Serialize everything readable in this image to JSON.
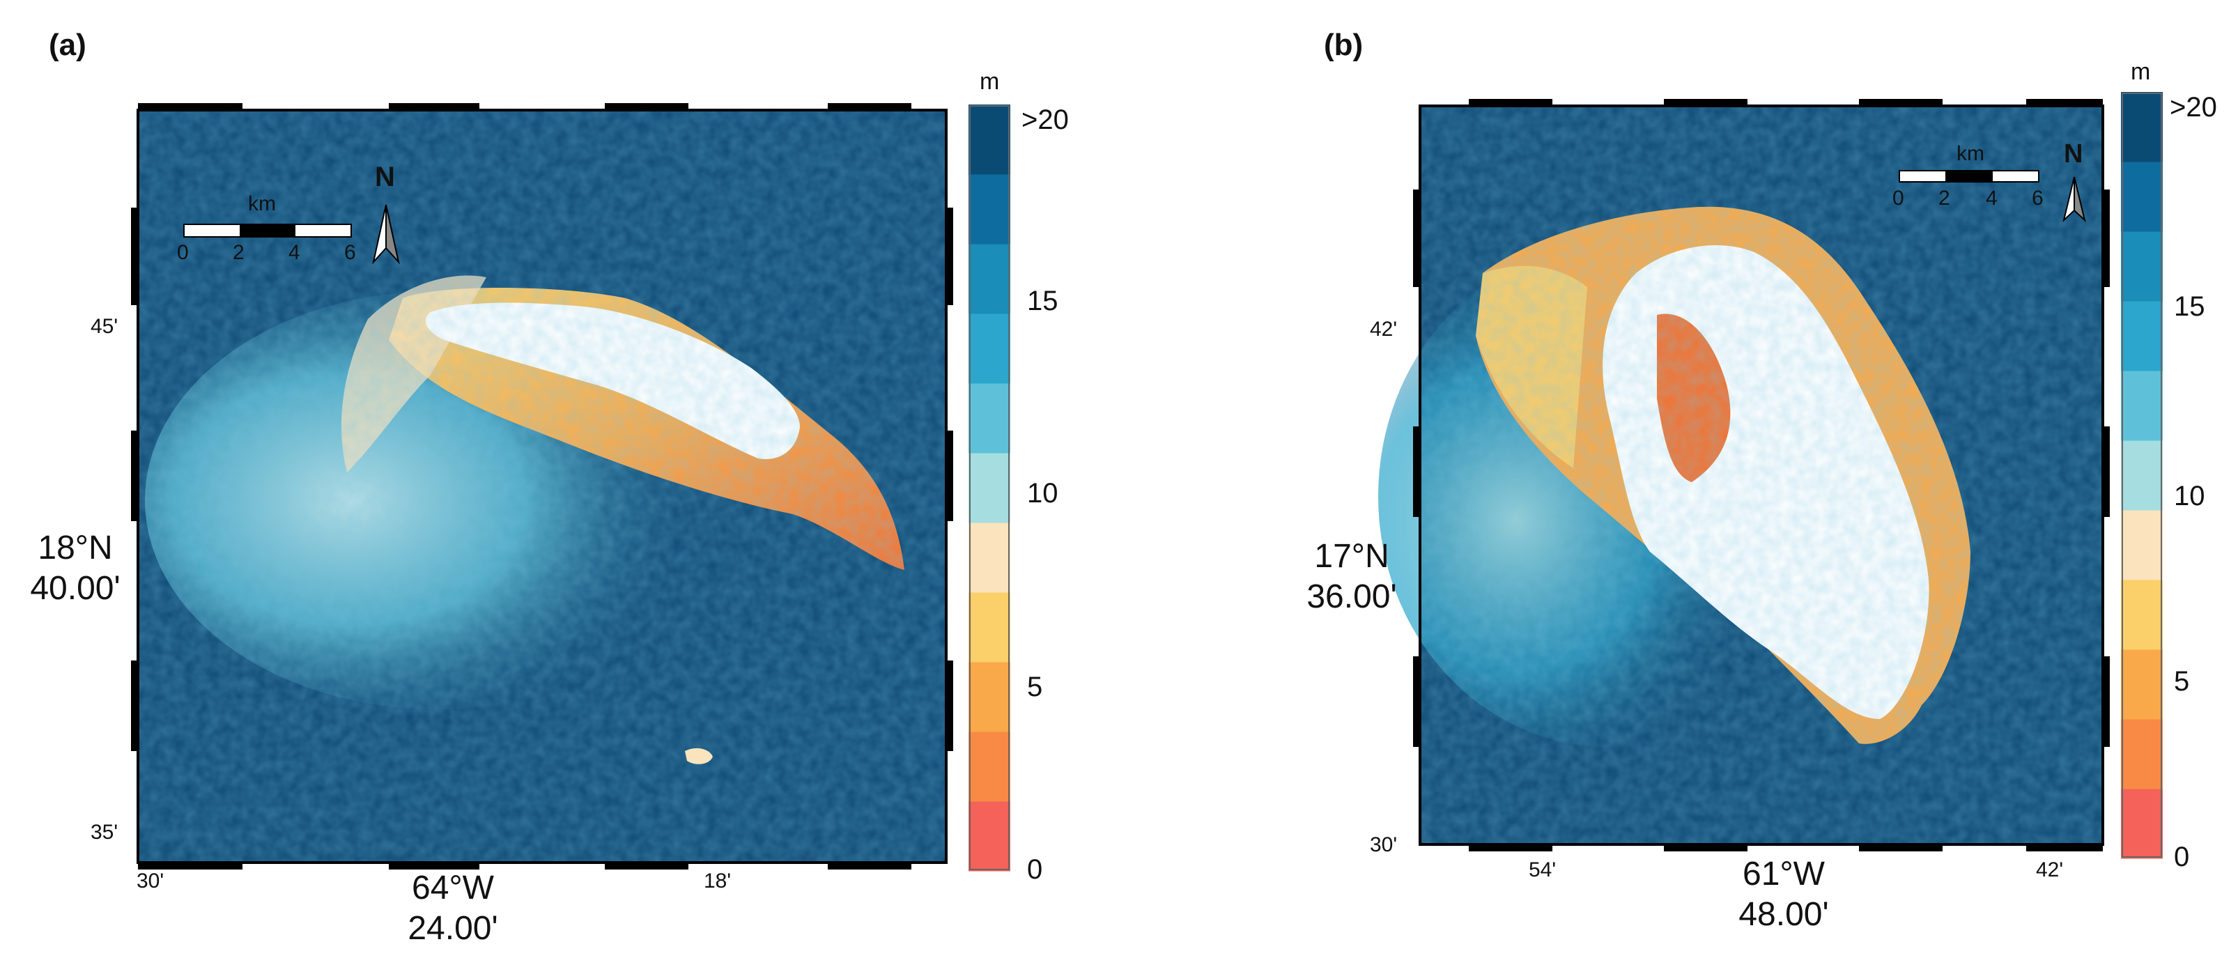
{
  "panels": [
    {
      "label": "(a)",
      "colorbar": {
        "unit": "m",
        "ticks": [
          "0",
          "5",
          "10",
          "15",
          ">20"
        ]
      },
      "scalebar": {
        "unit": "km",
        "ticks": [
          "0",
          "2",
          "4",
          "6"
        ]
      },
      "north_arrow": "N",
      "lat_ticks": [
        "45'",
        "35'"
      ],
      "lat_main": [
        "18°N",
        "40.00'"
      ],
      "lon_ticks": [
        "30'",
        "18'"
      ],
      "lon_main": [
        "64°W",
        "24.00'"
      ]
    },
    {
      "label": "(b)",
      "colorbar": {
        "unit": "m",
        "ticks": [
          "0",
          "5",
          "10",
          "15",
          ">20"
        ]
      },
      "scalebar": {
        "unit": "km",
        "ticks": [
          "0",
          "2",
          "4",
          "6"
        ]
      },
      "north_arrow": "N",
      "lat_ticks": [
        "42'",
        "30'"
      ],
      "lat_main": [
        "17°N",
        "36.00'"
      ],
      "lon_ticks": [
        "54'",
        "42'"
      ],
      "lon_main": [
        "61°W",
        "48.00'"
      ]
    }
  ],
  "colorbar_colors": [
    "#f4625a",
    "#f88a45",
    "#f9a94a",
    "#fbcf6a",
    "#fbe3bd",
    "#a5dde0",
    "#5ec1d9",
    "#2ca6cc",
    "#1a8db8",
    "#0f6c9f",
    "#0a4b74"
  ],
  "colors": {
    "deep_water": "#0d4a75",
    "land": "#ffffff",
    "shallow": "#f58a3a"
  }
}
